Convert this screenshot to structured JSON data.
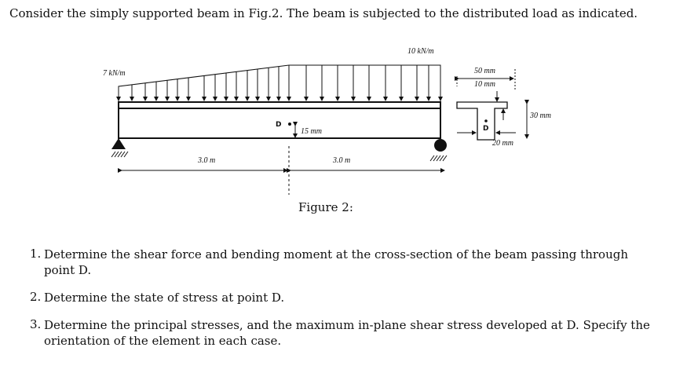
{
  "intro": "Consider the simply supported beam in Fig.2. The beam is subjected to the distributed load as indicated.",
  "figure": {
    "load_left": "7 kN/m",
    "load_right": "10 kN/m",
    "point_label": "D",
    "d_height": "15 mm",
    "span_left": "3.0 m",
    "span_right": "3.0 m",
    "flange_width": "50 mm",
    "flange_thickness": "10 mm",
    "depth": "30 mm",
    "web_width": "20 mm",
    "section_point": "D",
    "caption": "Figure 2:"
  },
  "questions": [
    {
      "num": "1.",
      "text": "Determine the shear force and bending moment at the cross-section of the beam passing through point D."
    },
    {
      "num": "2.",
      "text": "Determine the state of stress at point D."
    },
    {
      "num": "3.",
      "text": "Determine the principal stresses, and the maximum in-plane shear stress developed at D. Specify the orientation of the element in each case."
    }
  ]
}
